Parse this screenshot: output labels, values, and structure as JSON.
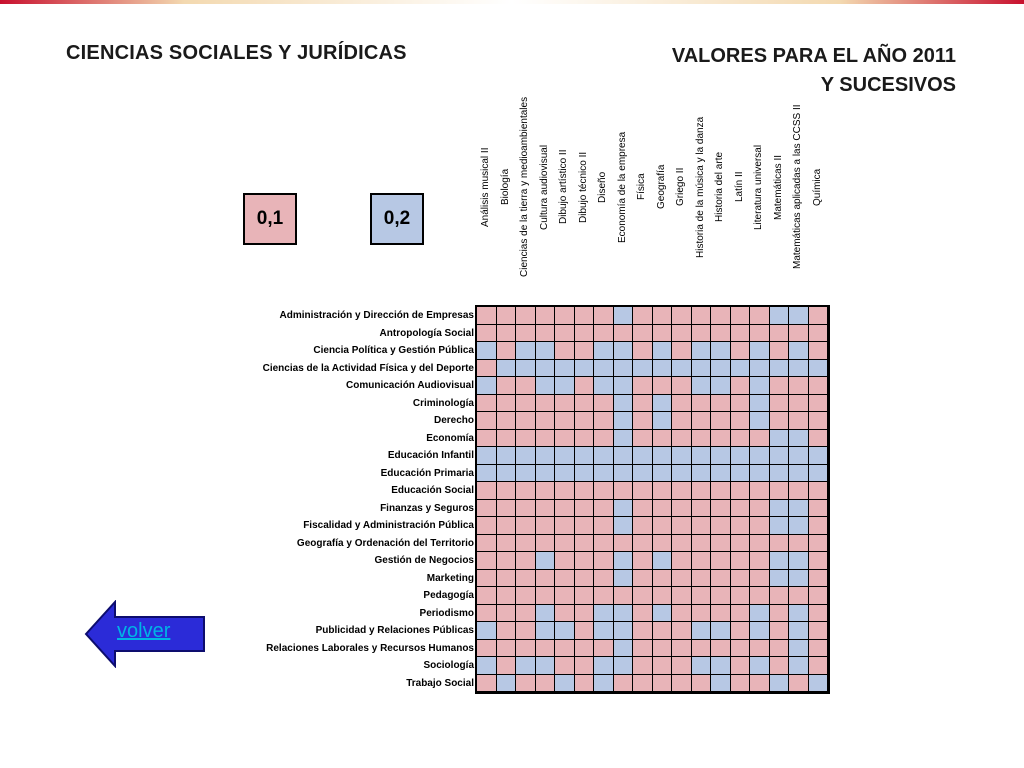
{
  "title_left": "CIENCIAS SOCIALES Y JURÍDICAS",
  "title_right_line1": "VALORES PARA EL AÑO 2011",
  "title_right_line2": "Y SUCESIVOS",
  "legend": [
    {
      "label": "0,1",
      "color": "#e8b4b8"
    },
    {
      "label": "0,2",
      "color": "#b7c8e4"
    }
  ],
  "colors": {
    "pink": "#e8b4b8",
    "blue": "#b7c8e4"
  },
  "back_button": {
    "label": "volver",
    "icon": "left-arrow-icon"
  },
  "columns": [
    "Análisis musical II",
    "Biología",
    "Ciencias de la tierra y medioambientales",
    "Cultura audiovisual",
    "Dibujo artístico II",
    "Dibujo técnico II",
    "Diseño",
    "Economía de la empresa",
    "Física",
    "Geografía",
    "Griego II",
    "Historia de la música y la danza",
    "Historia del arte",
    "Latín II",
    "Literatura universal",
    "Matemáticas II",
    "Matemáticas aplicadas a las CCSS II",
    "Química"
  ],
  "rows": [
    {
      "label": "Administración y Dirección de Empresas",
      "values": [
        1,
        1,
        1,
        1,
        1,
        1,
        1,
        2,
        1,
        1,
        1,
        1,
        1,
        1,
        1,
        2,
        2,
        1
      ]
    },
    {
      "label": "Antropología Social",
      "values": [
        1,
        1,
        1,
        1,
        1,
        1,
        1,
        1,
        1,
        1,
        1,
        1,
        1,
        1,
        1,
        1,
        1,
        1
      ]
    },
    {
      "label": "Ciencia Política y Gestión Pública",
      "values": [
        2,
        1,
        2,
        2,
        1,
        1,
        2,
        2,
        1,
        2,
        1,
        2,
        2,
        1,
        2,
        1,
        2,
        1
      ]
    },
    {
      "label": "Ciencias de la Actividad Física y del Deporte",
      "values": [
        1,
        2,
        2,
        2,
        2,
        2,
        2,
        2,
        2,
        2,
        2,
        2,
        2,
        2,
        2,
        2,
        2,
        2
      ]
    },
    {
      "label": "Comunicación Audiovisual",
      "values": [
        2,
        1,
        1,
        2,
        2,
        1,
        2,
        2,
        1,
        1,
        1,
        2,
        2,
        1,
        2,
        1,
        1,
        1
      ]
    },
    {
      "label": "Criminología",
      "values": [
        1,
        1,
        1,
        1,
        1,
        1,
        1,
        2,
        1,
        2,
        1,
        1,
        1,
        1,
        2,
        1,
        1,
        1
      ]
    },
    {
      "label": "Derecho",
      "values": [
        1,
        1,
        1,
        1,
        1,
        1,
        1,
        2,
        1,
        2,
        1,
        1,
        1,
        1,
        2,
        1,
        1,
        1
      ]
    },
    {
      "label": "Economía",
      "values": [
        1,
        1,
        1,
        1,
        1,
        1,
        1,
        2,
        1,
        1,
        1,
        1,
        1,
        1,
        1,
        2,
        2,
        1
      ]
    },
    {
      "label": "Educación Infantil",
      "values": [
        2,
        2,
        2,
        2,
        2,
        2,
        2,
        2,
        2,
        2,
        2,
        2,
        2,
        2,
        2,
        2,
        2,
        2
      ]
    },
    {
      "label": "Educación Primaria",
      "values": [
        2,
        2,
        2,
        2,
        2,
        2,
        2,
        2,
        2,
        2,
        2,
        2,
        2,
        2,
        2,
        2,
        2,
        2
      ]
    },
    {
      "label": "Educación Social",
      "values": [
        1,
        1,
        1,
        1,
        1,
        1,
        1,
        1,
        1,
        1,
        1,
        1,
        1,
        1,
        1,
        1,
        1,
        1
      ]
    },
    {
      "label": "Finanzas y Seguros",
      "values": [
        1,
        1,
        1,
        1,
        1,
        1,
        1,
        2,
        1,
        1,
        1,
        1,
        1,
        1,
        1,
        2,
        2,
        1
      ]
    },
    {
      "label": "Fiscalidad y Administración Pública",
      "values": [
        1,
        1,
        1,
        1,
        1,
        1,
        1,
        2,
        1,
        1,
        1,
        1,
        1,
        1,
        1,
        2,
        2,
        1
      ]
    },
    {
      "label": "Geografía y Ordenación del Territorio",
      "values": [
        1,
        1,
        1,
        1,
        1,
        1,
        1,
        1,
        1,
        1,
        1,
        1,
        1,
        1,
        1,
        1,
        1,
        1
      ]
    },
    {
      "label": "Gestión de Negocios",
      "values": [
        1,
        1,
        1,
        2,
        1,
        1,
        1,
        2,
        1,
        2,
        1,
        1,
        1,
        1,
        1,
        2,
        2,
        1
      ]
    },
    {
      "label": "Marketing",
      "values": [
        1,
        1,
        1,
        1,
        1,
        1,
        1,
        2,
        1,
        1,
        1,
        1,
        1,
        1,
        1,
        2,
        2,
        1
      ]
    },
    {
      "label": "Pedagogía",
      "values": [
        1,
        1,
        1,
        1,
        1,
        1,
        1,
        1,
        1,
        1,
        1,
        1,
        1,
        1,
        1,
        1,
        1,
        1
      ]
    },
    {
      "label": "Periodismo",
      "values": [
        1,
        1,
        1,
        2,
        1,
        1,
        2,
        2,
        1,
        2,
        1,
        1,
        1,
        1,
        2,
        1,
        2,
        1
      ]
    },
    {
      "label": "Publicidad y Relaciones Públicas",
      "values": [
        2,
        1,
        1,
        2,
        2,
        1,
        2,
        2,
        1,
        1,
        1,
        2,
        2,
        1,
        2,
        1,
        2,
        1
      ]
    },
    {
      "label": "Relaciones Laborales y Recursos Humanos",
      "values": [
        1,
        1,
        1,
        1,
        1,
        1,
        1,
        2,
        1,
        1,
        1,
        1,
        1,
        1,
        1,
        1,
        2,
        1
      ]
    },
    {
      "label": "Sociología",
      "values": [
        2,
        1,
        2,
        2,
        1,
        1,
        2,
        2,
        1,
        1,
        1,
        2,
        2,
        1,
        2,
        1,
        2,
        1
      ]
    },
    {
      "label": "Trabajo Social",
      "values": [
        1,
        2,
        1,
        1,
        2,
        1,
        2,
        1,
        1,
        1,
        1,
        1,
        2,
        1,
        1,
        2,
        1,
        2
      ]
    }
  ]
}
